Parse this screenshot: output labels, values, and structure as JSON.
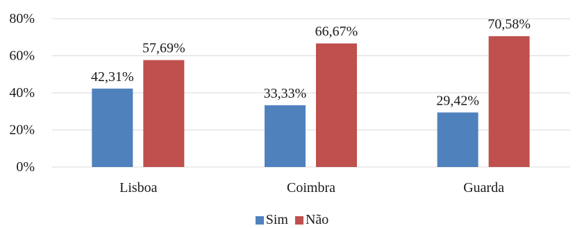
{
  "chart_data": {
    "type": "bar",
    "categories": [
      "Lisboa",
      "Coimbra",
      "Guarda"
    ],
    "series": [
      {
        "name": "Sim",
        "color": "#4F81BD",
        "values": [
          42.31,
          33.33,
          29.42
        ],
        "labels": [
          "42,31%",
          "33,33%",
          "29,42%"
        ]
      },
      {
        "name": "Não",
        "color": "#C0504D",
        "values": [
          57.69,
          66.67,
          70.58
        ],
        "labels": [
          "57,69%",
          "66,67%",
          "70,58%"
        ]
      }
    ],
    "y_ticks": [
      {
        "value": 0,
        "label": "0%"
      },
      {
        "value": 20,
        "label": "20%"
      },
      {
        "value": 40,
        "label": "40%"
      },
      {
        "value": 60,
        "label": "60%"
      },
      {
        "value": 80,
        "label": "80%"
      }
    ],
    "ylim": [
      0,
      80
    ],
    "grid": true,
    "gridline_color": "#D9D9D9",
    "legend": "bottom-center"
  }
}
